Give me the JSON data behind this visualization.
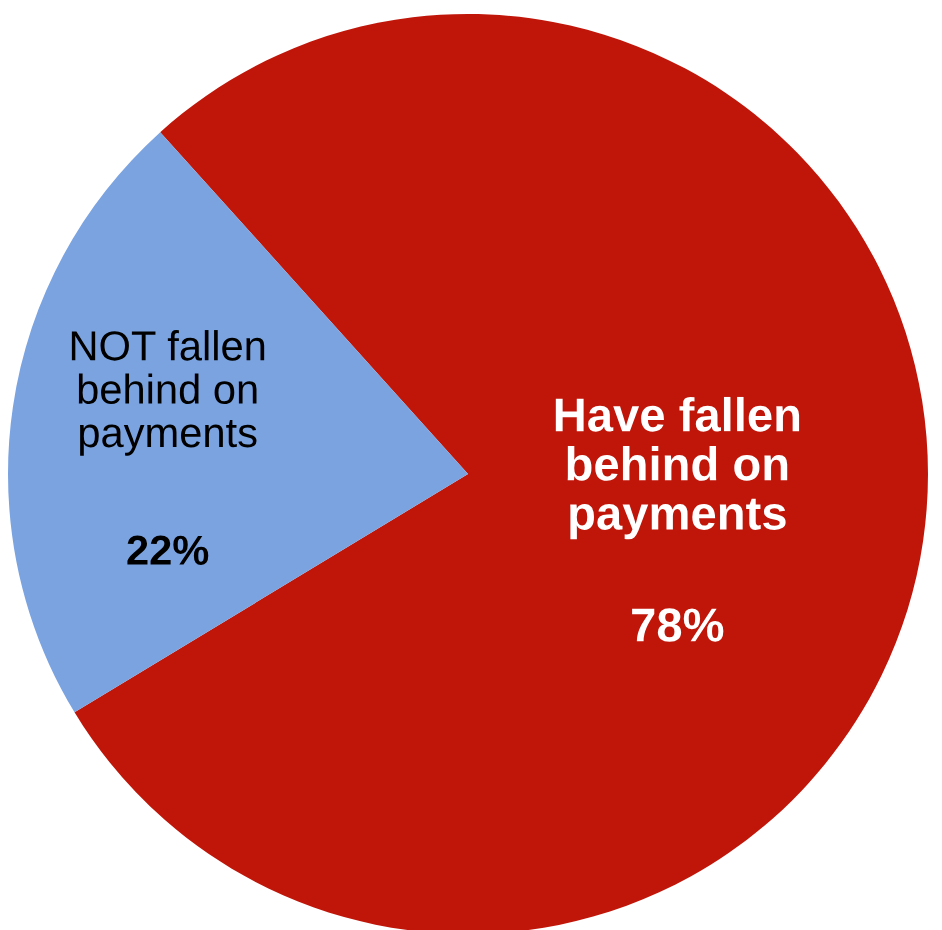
{
  "chart_data": {
    "type": "pie",
    "categories": [
      "Have fallen\nbehind on\npayments",
      "NOT fallen\nbehind on\npayments"
    ],
    "values": [
      78,
      22
    ],
    "colors": [
      "#c0160a",
      "#7ba3e0"
    ],
    "value_labels": [
      "78%",
      "22%"
    ],
    "legend": false
  }
}
